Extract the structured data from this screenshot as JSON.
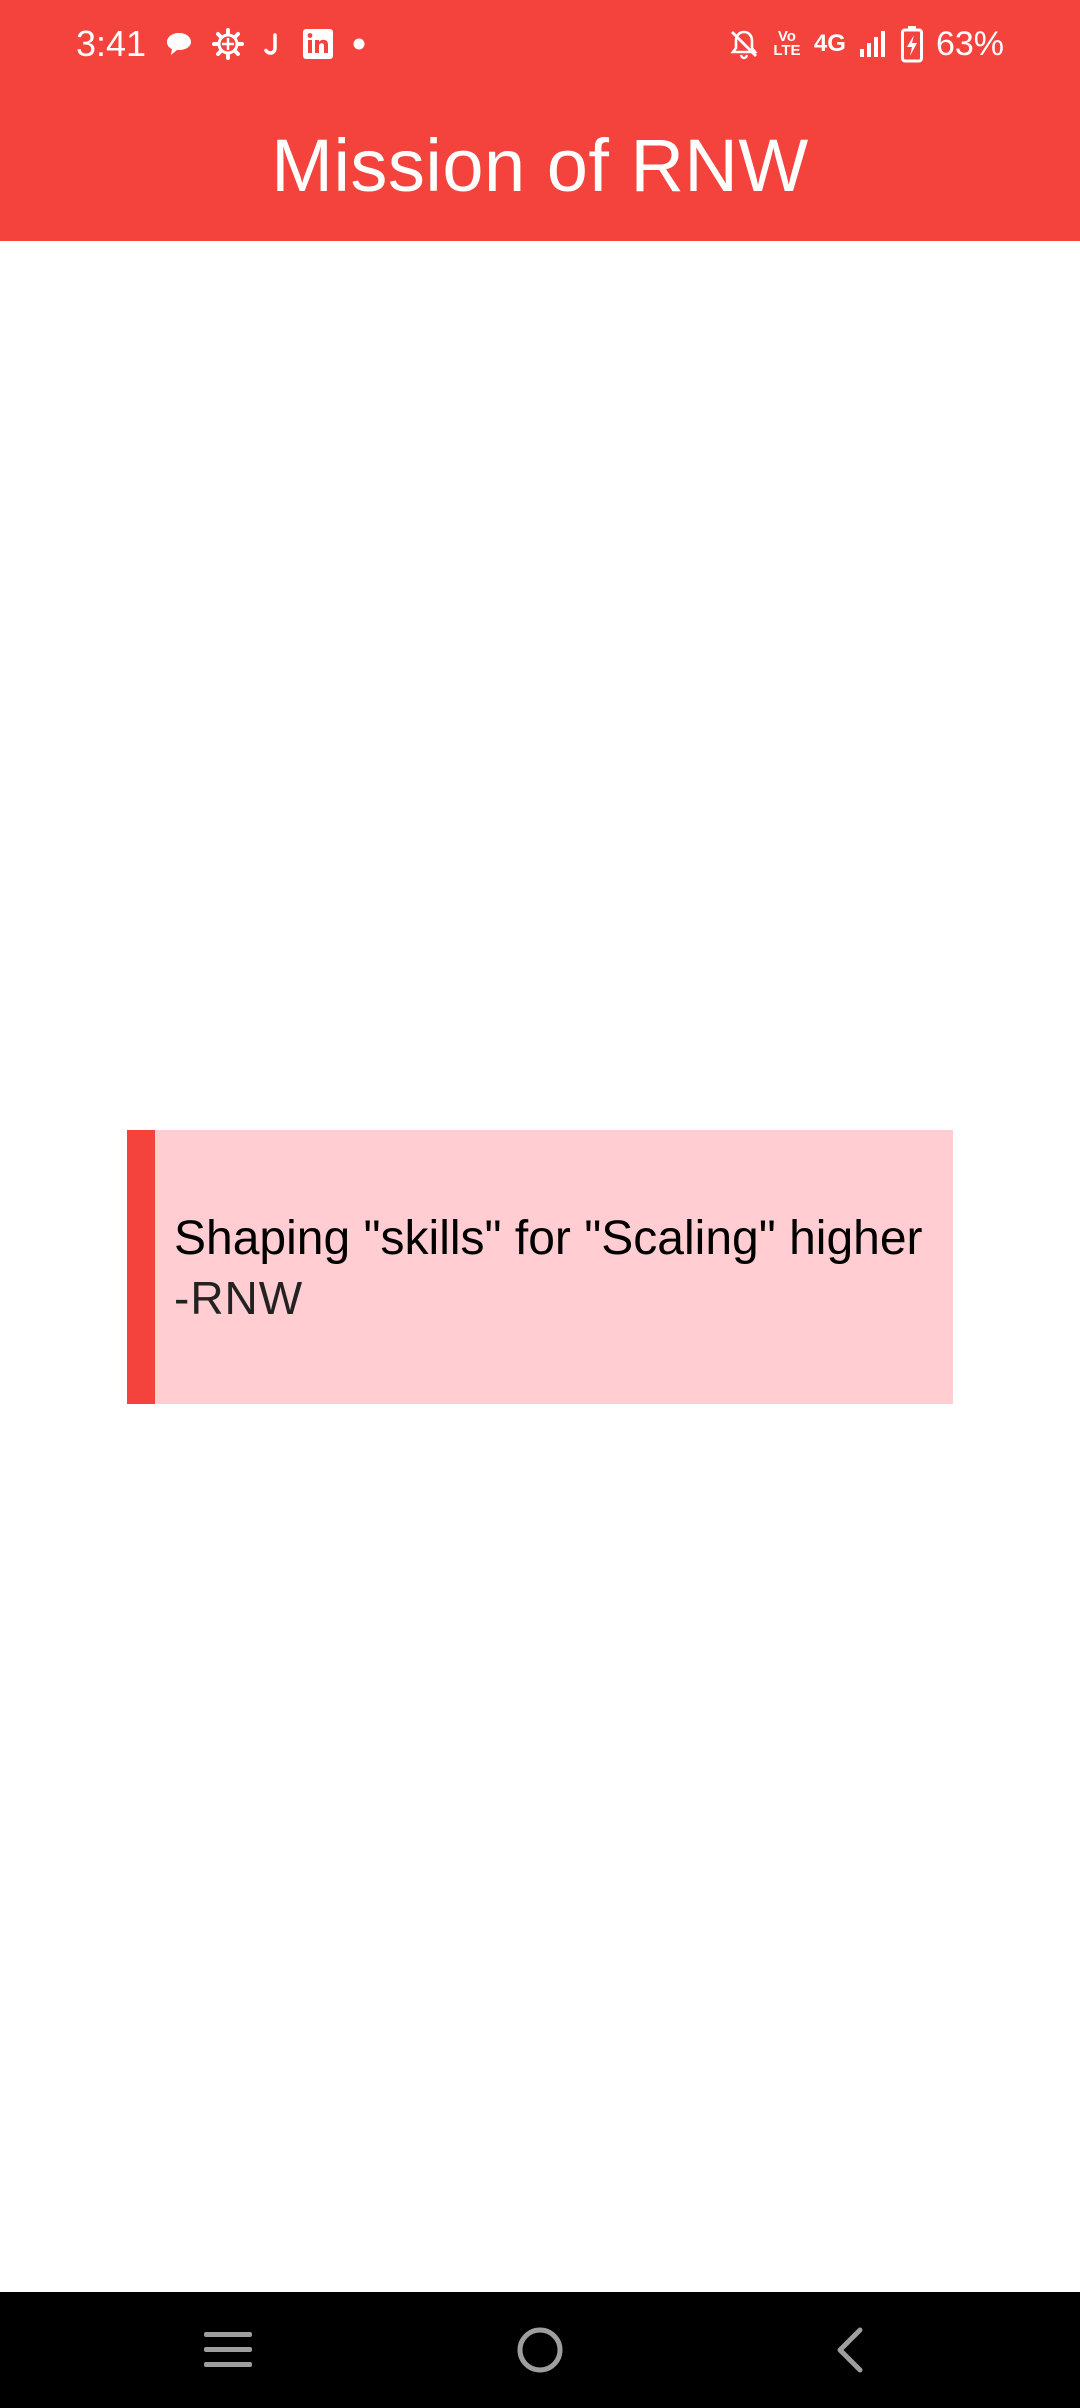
{
  "status_bar": {
    "time": "3:41",
    "left_icons": [
      "chat-bubble-icon",
      "gear-icon",
      "j-app-icon",
      "linkedin-icon",
      "dot-icon"
    ],
    "volte_label": "Vo LTE",
    "network_label": "4G",
    "battery_percent": "63%"
  },
  "app_bar": {
    "title": "Mission of RNW"
  },
  "quote": {
    "text": "Shaping \"skills\" for \"Scaling\" higher",
    "author": "-RNW"
  },
  "nav_bar": {
    "buttons": [
      "recents-icon",
      "home-icon",
      "back-icon"
    ]
  },
  "colors": {
    "primary": "#f4433c",
    "card_background": "#ffcdd2",
    "nav_background": "#000000"
  }
}
